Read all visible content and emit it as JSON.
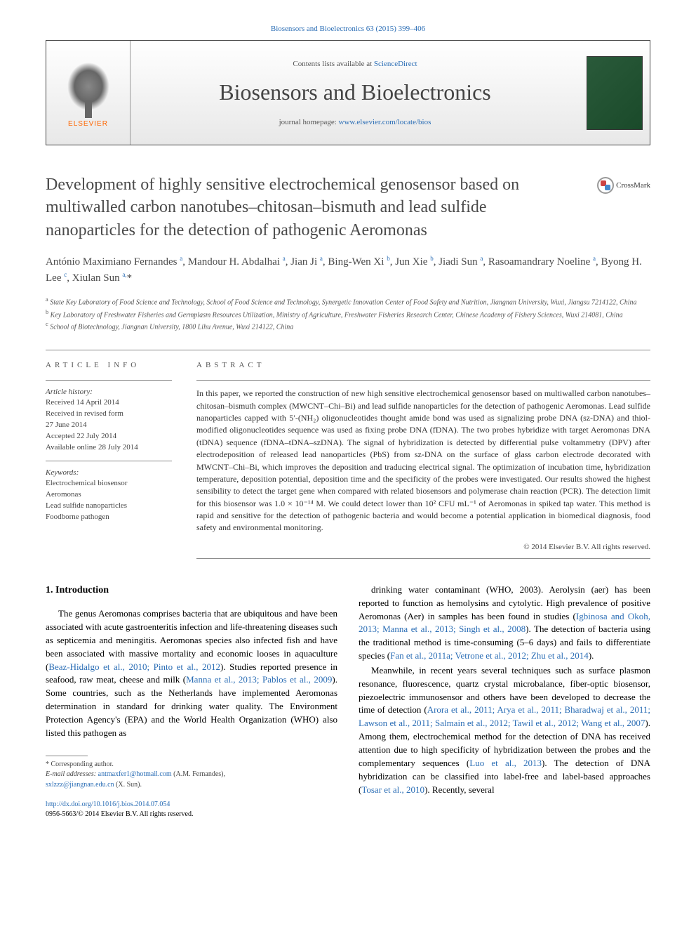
{
  "top_link": "Biosensors and Bioelectronics 63 (2015) 399–406",
  "header": {
    "contents_prefix": "Contents lists available at ",
    "contents_link": "ScienceDirect",
    "journal_name": "Biosensors and Bioelectronics",
    "homepage_prefix": "journal homepage: ",
    "homepage_link": "www.elsevier.com/locate/bios",
    "elsevier": "ELSEVIER"
  },
  "crossmark": "CrossMark",
  "title": "Development of highly sensitive electrochemical genosensor based on multiwalled carbon nanotubes–chitosan–bismuth and lead sulfide nanoparticles for the detection of pathogenic Aeromonas",
  "authors_html": "António Maximiano Fernandes <sup>a</sup>, Mandour H. Abdalhai <sup>a</sup>, Jian Ji <sup>a</sup>, Bing-Wen Xi <sup>b</sup>, Jun Xie <sup>b</sup>, Jiadi Sun <sup>a</sup>, Rasoamandrary Noeline <sup>a</sup>, Byong H. Lee <sup>c</sup>, Xiulan Sun <sup>a,</sup>*",
  "affiliations": {
    "a": "State Key Laboratory of Food Science and Technology, School of Food Science and Technology, Synergetic Innovation Center of Food Safety and Nutrition, Jiangnan University, Wuxi, Jiangsu 7214122, China",
    "b": "Key Laboratory of Freshwater Fisheries and Germplasm Resources Utilization, Ministry of Agriculture, Freshwater Fisheries Research Center, Chinese Academy of Fishery Sciences, Wuxi 214081, China",
    "c": "School of Biotechnology, Jiangnan University, 1800 Lihu Avenue, Wuxi 214122, China"
  },
  "article_info": {
    "heading": "ARTICLE INFO",
    "history_label": "Article history:",
    "history": "Received 14 April 2014\nReceived in revised form\n27 June 2014\nAccepted 22 July 2014\nAvailable online 28 July 2014",
    "keywords_label": "Keywords:",
    "keywords": "Electrochemical biosensor\nAeromonas\nLead sulfide nanoparticles\nFoodborne pathogen"
  },
  "abstract": {
    "heading": "ABSTRACT",
    "text": "In this paper, we reported the construction of new high sensitive electrochemical genosensor based on multiwalled carbon nanotubes–chitosan–bismuth complex (MWCNT–Chi–Bi) and lead sulfide nanoparticles for the detection of pathogenic Aeromonas. Lead sulfide nanoparticles capped with 5′-(NH₂) oligonucleotides thought amide bond was used as signalizing probe DNA (sz-DNA) and thiol-modified oligonucleotides sequence was used as fixing probe DNA (fDNA). The two probes hybridize with target Aeromonas DNA (tDNA) sequence (fDNA–tDNA–szDNA). The signal of hybridization is detected by differential pulse voltammetry (DPV) after electrodeposition of released lead nanoparticles (PbS) from sz-DNA on the surface of glass carbon electrode decorated with MWCNT–Chi–Bi, which improves the deposition and traducing electrical signal. The optimization of incubation time, hybridization temperature, deposition potential, deposition time and the specificity of the probes were investigated. Our results showed the highest sensibility to detect the target gene when compared with related biosensors and polymerase chain reaction (PCR). The detection limit for this biosensor was 1.0 × 10⁻¹⁴ M. We could detect lower than 10² CFU mL⁻¹ of Aeromonas in spiked tap water. This method is rapid and sensitive for the detection of pathogenic bacteria and would become a potential application in biomedical diagnosis, food safety and environmental monitoring.",
    "copyright": "© 2014 Elsevier B.V. All rights reserved."
  },
  "body": {
    "section_heading": "1. Introduction",
    "col1_p1": "The genus Aeromonas comprises bacteria that are ubiquitous and have been associated with acute gastroenteritis infection and life-threatening diseases such as septicemia and meningitis. Aeromonas species also infected fish and have been associated with massive mortality and economic looses in aquaculture (Beaz-Hidalgo et al., 2010; Pinto et al., 2012). Studies reported presence in seafood, raw meat, cheese and milk (Manna et al., 2013; Pablos et al., 2009). Some countries, such as the Netherlands have implemented Aeromonas determination in standard for drinking water quality. The Environment Protection Agency's (EPA) and the World Health Organization (WHO) also listed this pathogen as",
    "col2_p1": "drinking water contaminant (WHO, 2003). Aerolysin (aer) has been reported to function as hemolysins and cytolytic. High prevalence of positive Aeromonas (Aer) in samples has been found in studies (Igbinosa and Okoh, 2013; Manna et al., 2013; Singh et al., 2008). The detection of bacteria using the traditional method is time-consuming (5–6 days) and fails to differentiate species (Fan et al., 2011a; Vetrone et al., 2012; Zhu et al., 2014).",
    "col2_p2": "Meanwhile, in recent years several techniques such as surface plasmon resonance, fluorescence, quartz crystal microbalance, fiber-optic biosensor, piezoelectric immunosensor and others have been developed to decrease the time of detection (Arora et al., 2011; Arya et al., 2011; Bharadwaj et al., 2011; Lawson et al., 2011; Salmain et al., 2012; Tawil et al., 2012; Wang et al., 2007). Among them, electrochemical method for the detection of DNA has received attention due to high specificity of hybridization between the probes and the complementary sequences (Luo et al., 2013). The detection of DNA hybridization can be classified into label-free and label-based approaches (Tosar et al., 2010). Recently, several"
  },
  "footnotes": {
    "corresp": "* Corresponding author.",
    "email_label": "E-mail addresses: ",
    "email1": "antmaxfer1@hotmail.com",
    "email1_name": " (A.M. Fernandes),",
    "email2": "sxlzzz@jiangnan.edu.cn",
    "email2_name": " (X. Sun)."
  },
  "doi": {
    "link": "http://dx.doi.org/10.1016/j.bios.2014.07.054",
    "issn": "0956-5663/© 2014 Elsevier B.V. All rights reserved."
  }
}
